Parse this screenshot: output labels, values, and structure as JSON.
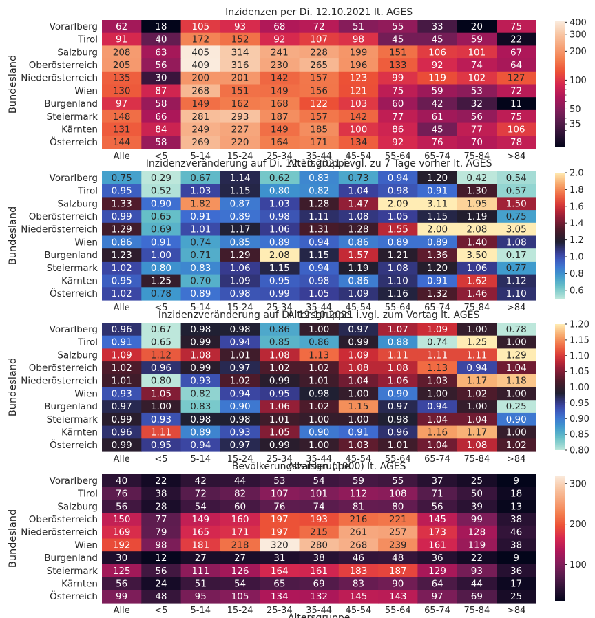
{
  "shared": {
    "ylabel": "Bundesland",
    "xlabel": "Altersgruppe",
    "rows": [
      "Vorarlberg",
      "Tirol",
      "Salzburg",
      "Oberösterreich",
      "Niederösterreich",
      "Wien",
      "Burgenland",
      "Steiermark",
      "Kärnten",
      "Österreich"
    ],
    "columns": [
      "Alle",
      "<5",
      "5-14",
      "15-24",
      "25-34",
      "35-44",
      "45-54",
      "55-64",
      "65-74",
      "75-84",
      ">84"
    ]
  },
  "chart_data": [
    {
      "type": "heatmap",
      "title": "Inzidenzen per Di. 12.10.2021 lt. AGES",
      "xlabel": "Altersgruppe",
      "ylabel": "Bundesland",
      "colormap": "rocket",
      "scale": "log",
      "vmin": 20,
      "vmax": 409,
      "colorbar_ticks": [
        "35",
        "50",
        "100",
        "200",
        "300",
        "400"
      ],
      "colorbar_tick_values": [
        35,
        50,
        100,
        200,
        300,
        400
      ],
      "labels": [
        [
          "62",
          "18",
          "105",
          "93",
          "68",
          "72",
          "51",
          "55",
          "33",
          "20",
          "75"
        ],
        [
          "91",
          "40",
          "172",
          "152",
          "92",
          "107",
          "98",
          "45",
          "45",
          "59",
          "22"
        ],
        [
          "208",
          "63",
          "405",
          "314",
          "241",
          "228",
          "199",
          "151",
          "106",
          "101",
          "67"
        ],
        [
          "205",
          "56",
          "409",
          "316",
          "230",
          "265",
          "196",
          "133",
          "92",
          "74",
          "64"
        ],
        [
          "135",
          "30",
          "200",
          "201",
          "142",
          "157",
          "123",
          "99",
          "119",
          "102",
          "127"
        ],
        [
          "130",
          "87",
          "268",
          "151",
          "149",
          "156",
          "121",
          "75",
          "59",
          "53",
          "72"
        ],
        [
          "97",
          "58",
          "149",
          "162",
          "168",
          "122",
          "103",
          "60",
          "42",
          "32",
          "11"
        ],
        [
          "148",
          "66",
          "281",
          "293",
          "187",
          "157",
          "142",
          "77",
          "61",
          "56",
          "75"
        ],
        [
          "131",
          "84",
          "249",
          "227",
          "149",
          "185",
          "100",
          "86",
          "45",
          "77",
          "106"
        ],
        [
          "144",
          "58",
          "269",
          "220",
          "164",
          "171",
          "134",
          "92",
          "76",
          "70",
          "78"
        ]
      ]
    },
    {
      "type": "heatmap",
      "title": "Inzidenzveränderung auf Di. 12.10.2021 i.vgl. zu 7 Tage vorher lt. AGES",
      "xlabel": "Altersgruppe",
      "ylabel": "Bundesland",
      "colormap": "icefire",
      "scale": "linear",
      "vmin": 0.5,
      "vmax": 2.0,
      "center": 1.0,
      "colorbar_ticks": [
        "0.6",
        "0.8",
        "1.0",
        "1.2",
        "1.4",
        "1.6",
        "1.8",
        "2.0"
      ],
      "colorbar_tick_values": [
        0.6,
        0.8,
        1.0,
        1.2,
        1.4,
        1.6,
        1.8,
        2.0
      ],
      "labels": [
        [
          "0.75",
          "0.29",
          "0.67",
          "1.14",
          "0.62",
          "0.83",
          "0.73",
          "0.94",
          "1.20",
          "0.42",
          "0.54"
        ],
        [
          "0.95",
          "0.52",
          "1.03",
          "1.15",
          "0.80",
          "0.82",
          "1.04",
          "0.98",
          "0.91",
          "1.30",
          "0.57"
        ],
        [
          "1.33",
          "0.90",
          "1.82",
          "0.87",
          "1.03",
          "1.28",
          "1.47",
          "2.09",
          "3.11",
          "1.95",
          "1.50"
        ],
        [
          "0.99",
          "0.65",
          "0.91",
          "0.89",
          "0.98",
          "1.11",
          "1.08",
          "1.05",
          "1.15",
          "1.19",
          "0.75"
        ],
        [
          "1.29",
          "0.69",
          "1.01",
          "1.17",
          "1.06",
          "1.31",
          "1.28",
          "1.55",
          "2.00",
          "2.08",
          "3.05"
        ],
        [
          "0.86",
          "0.91",
          "0.74",
          "0.85",
          "0.89",
          "0.94",
          "0.86",
          "0.89",
          "0.89",
          "1.40",
          "1.08"
        ],
        [
          "1.23",
          "1.00",
          "0.71",
          "1.29",
          "2.08",
          "1.15",
          "1.57",
          "1.21",
          "1.36",
          "3.50",
          "0.17"
        ],
        [
          "1.02",
          "0.80",
          "0.83",
          "1.06",
          "1.15",
          "0.94",
          "1.19",
          "1.08",
          "1.20",
          "1.06",
          "0.77"
        ],
        [
          "0.95",
          "1.25",
          "0.70",
          "1.09",
          "0.95",
          "0.98",
          "0.86",
          "1.10",
          "0.91",
          "1.62",
          "1.12"
        ],
        [
          "1.02",
          "0.78",
          "0.89",
          "0.98",
          "0.99",
          "1.05",
          "1.09",
          "1.16",
          "1.32",
          "1.46",
          "1.10"
        ]
      ]
    },
    {
      "type": "heatmap",
      "title": "Inzidenzveränderung auf Di. 12.10.2021 i.vgl. zum Vortag lt. AGES",
      "xlabel": "Altersgruppe",
      "ylabel": "Bundesland",
      "colormap": "icefire",
      "scale": "linear",
      "vmin": 0.8,
      "vmax": 1.2,
      "center": 1.0,
      "colorbar_ticks": [
        "0.80",
        "0.85",
        "0.90",
        "0.95",
        "1.00",
        "1.05",
        "1.10",
        "1.15",
        "1.20"
      ],
      "colorbar_tick_values": [
        0.8,
        0.85,
        0.9,
        0.95,
        1.0,
        1.05,
        1.1,
        1.15,
        1.2
      ],
      "labels": [
        [
          "0.96",
          "0.67",
          "0.98",
          "0.98",
          "0.86",
          "1.00",
          "0.97",
          "1.07",
          "1.09",
          "1.00",
          "0.78"
        ],
        [
          "0.91",
          "0.65",
          "0.99",
          "0.94",
          "0.85",
          "0.86",
          "0.99",
          "0.88",
          "0.74",
          "1.25",
          "1.00"
        ],
        [
          "1.09",
          "1.12",
          "1.08",
          "1.01",
          "1.08",
          "1.13",
          "1.09",
          "1.11",
          "1.11",
          "1.11",
          "1.29"
        ],
        [
          "1.02",
          "0.96",
          "0.99",
          "0.97",
          "1.02",
          "1.02",
          "1.08",
          "1.08",
          "1.13",
          "0.94",
          "1.04"
        ],
        [
          "1.01",
          "0.80",
          "0.93",
          "1.02",
          "0.99",
          "1.01",
          "1.04",
          "1.06",
          "1.03",
          "1.17",
          "1.18"
        ],
        [
          "0.93",
          "1.05",
          "0.82",
          "0.94",
          "0.95",
          "0.98",
          "1.00",
          "0.90",
          "1.00",
          "1.02",
          "1.00"
        ],
        [
          "0.97",
          "1.00",
          "0.83",
          "0.90",
          "1.06",
          "1.02",
          "1.15",
          "0.97",
          "0.94",
          "1.00",
          "0.25"
        ],
        [
          "0.99",
          "0.93",
          "0.98",
          "0.98",
          "1.01",
          "1.00",
          "1.00",
          "0.98",
          "1.04",
          "1.04",
          "0.90"
        ],
        [
          "0.96",
          "1.11",
          "0.89",
          "0.93",
          "1.05",
          "0.90",
          "0.91",
          "0.96",
          "1.16",
          "1.17",
          "1.00"
        ],
        [
          "0.99",
          "0.95",
          "0.94",
          "0.97",
          "0.99",
          "1.00",
          "1.03",
          "1.01",
          "1.04",
          "1.08",
          "1.02"
        ]
      ]
    },
    {
      "type": "heatmap",
      "title": "Bevölkerungszahlen (1000) lt. AGES",
      "xlabel": "Altersgruppe",
      "ylabel": "Bundesland",
      "colormap": "rocket",
      "scale": "linear",
      "vmin": 9,
      "vmax": 320,
      "colorbar_ticks": [
        "100",
        "200",
        "300"
      ],
      "colorbar_tick_values": [
        100,
        200,
        300
      ],
      "labels": [
        [
          "40",
          "22",
          "42",
          "44",
          "53",
          "54",
          "59",
          "55",
          "37",
          "25",
          "9"
        ],
        [
          "76",
          "38",
          "72",
          "82",
          "107",
          "101",
          "112",
          "108",
          "71",
          "50",
          "18"
        ],
        [
          "56",
          "28",
          "54",
          "60",
          "76",
          "74",
          "81",
          "80",
          "56",
          "39",
          "13"
        ],
        [
          "150",
          "77",
          "149",
          "160",
          "197",
          "193",
          "216",
          "221",
          "145",
          "99",
          "38"
        ],
        [
          "169",
          "79",
          "165",
          "171",
          "197",
          "215",
          "261",
          "257",
          "173",
          "128",
          "46"
        ],
        [
          "192",
          "98",
          "181",
          "218",
          "320",
          "280",
          "268",
          "239",
          "161",
          "119",
          "38"
        ],
        [
          "30",
          "12",
          "27",
          "27",
          "31",
          "38",
          "46",
          "48",
          "36",
          "22",
          "9"
        ],
        [
          "125",
          "56",
          "111",
          "126",
          "164",
          "161",
          "183",
          "187",
          "129",
          "93",
          "36"
        ],
        [
          "56",
          "24",
          "51",
          "54",
          "65",
          "69",
          "83",
          "90",
          "64",
          "44",
          "17"
        ],
        [
          "99",
          "48",
          "95",
          "105",
          "134",
          "132",
          "145",
          "143",
          "97",
          "69",
          "25"
        ]
      ]
    }
  ]
}
